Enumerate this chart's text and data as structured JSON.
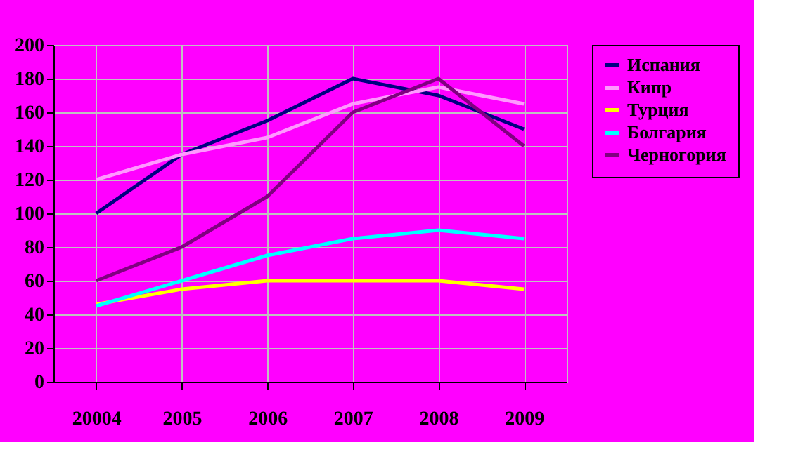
{
  "chart_data": {
    "type": "line",
    "categories": [
      "20004",
      "2005",
      "2006",
      "2007",
      "2008",
      "2009"
    ],
    "series": [
      {
        "name": "Испания",
        "color": "#000080",
        "values": [
          100,
          135,
          155,
          180,
          170,
          150
        ]
      },
      {
        "name": "Кипр",
        "color": "#ff99ff",
        "values": [
          120,
          135,
          145,
          165,
          175,
          165
        ]
      },
      {
        "name": "Турция",
        "color": "#ffff00",
        "values": [
          46,
          55,
          60,
          60,
          60,
          55
        ]
      },
      {
        "name": "Болгария",
        "color": "#00ffff",
        "values": [
          45,
          60,
          75,
          85,
          90,
          85
        ]
      },
      {
        "name": "Черногория",
        "color": "#800080",
        "values": [
          60,
          80,
          110,
          160,
          180,
          140
        ]
      }
    ],
    "ylim": [
      0,
      200
    ],
    "yticks": [
      0,
      20,
      40,
      60,
      80,
      100,
      120,
      140,
      160,
      180,
      200
    ],
    "grid": true,
    "legend": "right",
    "marker": "none",
    "line_style": "solid"
  }
}
